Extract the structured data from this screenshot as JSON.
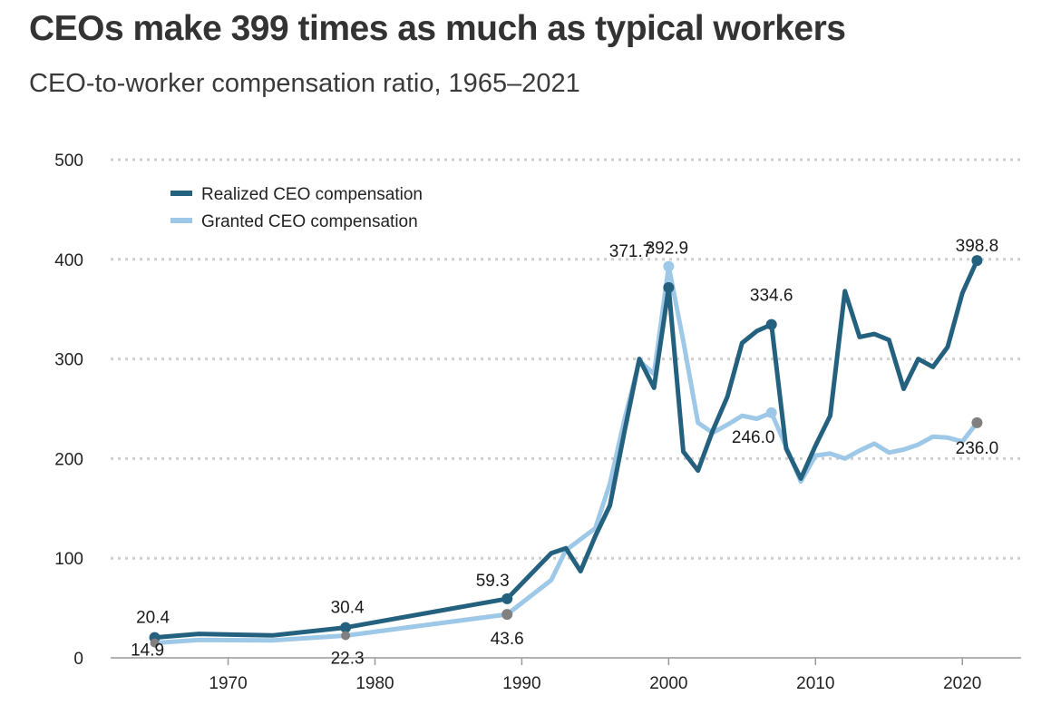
{
  "chart_data": {
    "type": "line",
    "title": "CEOs make 399 times as much as typical workers",
    "subtitle": "CEO-to-worker compensation ratio, 1965–2021",
    "xlabel": "",
    "ylabel": "",
    "xlim": [
      1962,
      2024
    ],
    "ylim": [
      0,
      500
    ],
    "y_ticks": [
      0,
      100,
      200,
      300,
      400,
      500
    ],
    "x_ticks": [
      1970,
      1980,
      1990,
      2000,
      2010,
      2020
    ],
    "grid": true,
    "legend_position": "top-left",
    "series": [
      {
        "name": "Realized CEO compensation",
        "color": "#24617f",
        "points": [
          [
            1965,
            20.4
          ],
          [
            1968,
            24
          ],
          [
            1973,
            22.5
          ],
          [
            1978,
            30.4
          ],
          [
            1989,
            59.3
          ],
          [
            1992,
            105
          ],
          [
            1993,
            110
          ],
          [
            1994,
            87
          ],
          [
            1995,
            122
          ],
          [
            1996,
            153
          ],
          [
            1997,
            228
          ],
          [
            1998,
            300
          ],
          [
            1999,
            271
          ],
          [
            2000,
            371.7
          ],
          [
            2001,
            207
          ],
          [
            2002,
            188
          ],
          [
            2003,
            228
          ],
          [
            2004,
            262
          ],
          [
            2005,
            316
          ],
          [
            2006,
            328
          ],
          [
            2007,
            334.6
          ],
          [
            2008,
            210
          ],
          [
            2009,
            180
          ],
          [
            2010,
            213
          ],
          [
            2011,
            243
          ],
          [
            2012,
            368
          ],
          [
            2013,
            322
          ],
          [
            2014,
            325
          ],
          [
            2015,
            319
          ],
          [
            2016,
            270
          ],
          [
            2017,
            300
          ],
          [
            2018,
            292
          ],
          [
            2019,
            312
          ],
          [
            2020,
            366
          ],
          [
            2021,
            398.8
          ]
        ]
      },
      {
        "name": "Granted CEO compensation",
        "color": "#9ec8e7",
        "points": [
          [
            1965,
            14.9
          ],
          [
            1968,
            18
          ],
          [
            1973,
            17.5
          ],
          [
            1978,
            22.3
          ],
          [
            1989,
            43.6
          ],
          [
            1992,
            78
          ],
          [
            1993,
            108
          ],
          [
            1995,
            130
          ],
          [
            1996,
            175
          ],
          [
            1997,
            240
          ],
          [
            1998,
            298
          ],
          [
            1999,
            285
          ],
          [
            2000,
            392.9
          ],
          [
            2001,
            318
          ],
          [
            2002,
            236
          ],
          [
            2003,
            226
          ],
          [
            2004,
            234
          ],
          [
            2005,
            243
          ],
          [
            2006,
            240
          ],
          [
            2007,
            246.0
          ],
          [
            2008,
            212
          ],
          [
            2009,
            177
          ],
          [
            2010,
            203
          ],
          [
            2011,
            205
          ],
          [
            2012,
            200
          ],
          [
            2013,
            208
          ],
          [
            2014,
            215
          ],
          [
            2015,
            206
          ],
          [
            2016,
            209
          ],
          [
            2017,
            214
          ],
          [
            2018,
            222
          ],
          [
            2019,
            221
          ],
          [
            2020,
            217
          ],
          [
            2021,
            236.0
          ]
        ]
      }
    ],
    "annotations": [
      {
        "year": 1965,
        "value": 20.4,
        "text": "20.4",
        "series": 0
      },
      {
        "year": 1965,
        "value": 14.9,
        "text": "14.9",
        "series": 1
      },
      {
        "year": 1978,
        "value": 30.4,
        "text": "30.4",
        "series": 0
      },
      {
        "year": 1978,
        "value": 22.3,
        "text": "22.3",
        "series": 1
      },
      {
        "year": 1989,
        "value": 59.3,
        "text": "59.3",
        "series": 0
      },
      {
        "year": 1989,
        "value": 43.6,
        "text": "43.6",
        "series": 1
      },
      {
        "year": 2000,
        "value": 371.7,
        "text": "371.7",
        "series": 0
      },
      {
        "year": 2000,
        "value": 392.9,
        "text": "392.9",
        "series": 1
      },
      {
        "year": 2007,
        "value": 334.6,
        "text": "334.6",
        "series": 0
      },
      {
        "year": 2007,
        "value": 246.0,
        "text": "246.0",
        "series": 1
      },
      {
        "year": 2021,
        "value": 398.8,
        "text": "398.8",
        "series": 0
      },
      {
        "year": 2021,
        "value": 236.0,
        "text": "236.0",
        "series": 1
      }
    ]
  }
}
